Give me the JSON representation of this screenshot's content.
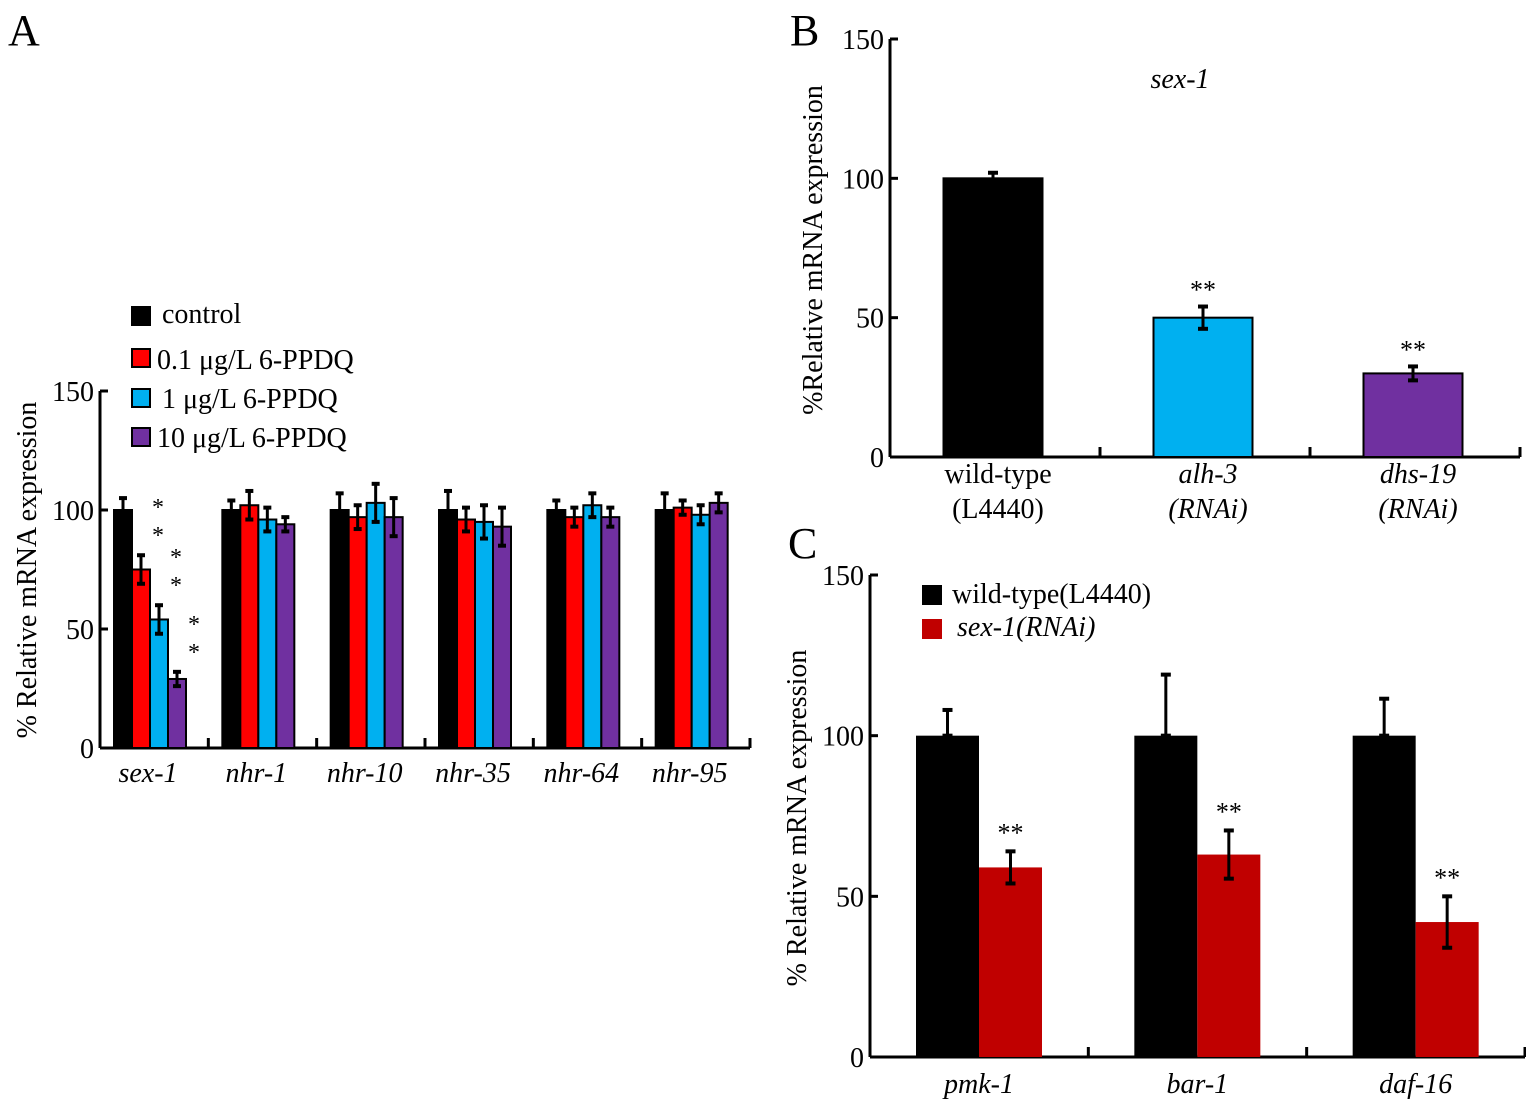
{
  "chart_data": [
    {
      "panel": "A",
      "type": "bar",
      "ylabel": "% Relative mRNA expression",
      "ylim": [
        0,
        150
      ],
      "yticks": [
        "0",
        "50",
        "100",
        "150"
      ],
      "categories": [
        "sex-1",
        "nhr-1",
        "nhr-10",
        "nhr-35",
        "nhr-64",
        "nhr-95"
      ],
      "legend_position": "top-left",
      "series": [
        {
          "name": "control",
          "color": "#000000",
          "values": [
            100,
            100,
            100,
            100,
            100,
            100
          ],
          "errors": [
            5,
            4,
            7,
            8,
            4,
            7
          ]
        },
        {
          "name": "0.1 μg/L 6-PPDQ",
          "color": "#ff0000",
          "values": [
            75,
            102,
            97,
            96,
            97,
            101
          ],
          "errors": [
            6,
            6,
            5,
            5,
            4,
            3
          ]
        },
        {
          "name": "1 μg/L 6-PPDQ",
          "color": "#00b0f0",
          "values": [
            54,
            96,
            103,
            95,
            102,
            98
          ],
          "errors": [
            6,
            5,
            8,
            7,
            5,
            4
          ]
        },
        {
          "name": "10 μg/L 6-PPDQ",
          "color": "#7030a0",
          "values": [
            29,
            94,
            97,
            93,
            97,
            103
          ],
          "errors": [
            3,
            3,
            8,
            8,
            4,
            4
          ]
        }
      ],
      "annotations": [
        {
          "category": "sex-1",
          "series": "0.1 μg/L 6-PPDQ",
          "text": "**"
        },
        {
          "category": "sex-1",
          "series": "1 μg/L 6-PPDQ",
          "text": "**"
        },
        {
          "category": "sex-1",
          "series": "10 μg/L 6-PPDQ",
          "text": "**"
        }
      ]
    },
    {
      "panel": "B",
      "type": "bar",
      "title": "sex-1",
      "ylabel": "%Relative mRNA expression",
      "ylim": [
        0,
        150
      ],
      "yticks": [
        "0",
        "50",
        "100",
        "150"
      ],
      "categories": [
        [
          "wild-type",
          "(L4440)"
        ],
        [
          "alh-3",
          "(RNAi)"
        ],
        [
          "dhs-19",
          "(RNAi)"
        ]
      ],
      "colors": [
        "#000000",
        "#00b0f0",
        "#7030a0"
      ],
      "values": [
        100,
        50,
        30
      ],
      "errors": [
        2,
        4,
        2.5
      ],
      "annotations": [
        "",
        "**",
        "**"
      ]
    },
    {
      "panel": "C",
      "type": "bar",
      "ylabel": "% Relative mRNA expression",
      "ylim": [
        0,
        150
      ],
      "yticks": [
        "0",
        "50",
        "100",
        "150"
      ],
      "categories": [
        "pmk-1",
        "bar-1",
        "daf-16"
      ],
      "legend_position": "top-left",
      "series": [
        {
          "name": "wild-type(L4440)",
          "color": "#000000",
          "values": [
            100,
            100,
            100
          ],
          "errors": [
            8,
            19,
            11.5
          ]
        },
        {
          "name": "sex-1(RNAi)",
          "color": "#c00000",
          "values": [
            59,
            63,
            42
          ],
          "errors": [
            5,
            7.5,
            8
          ]
        }
      ],
      "annotations": [
        "**",
        "**",
        "**"
      ]
    }
  ]
}
